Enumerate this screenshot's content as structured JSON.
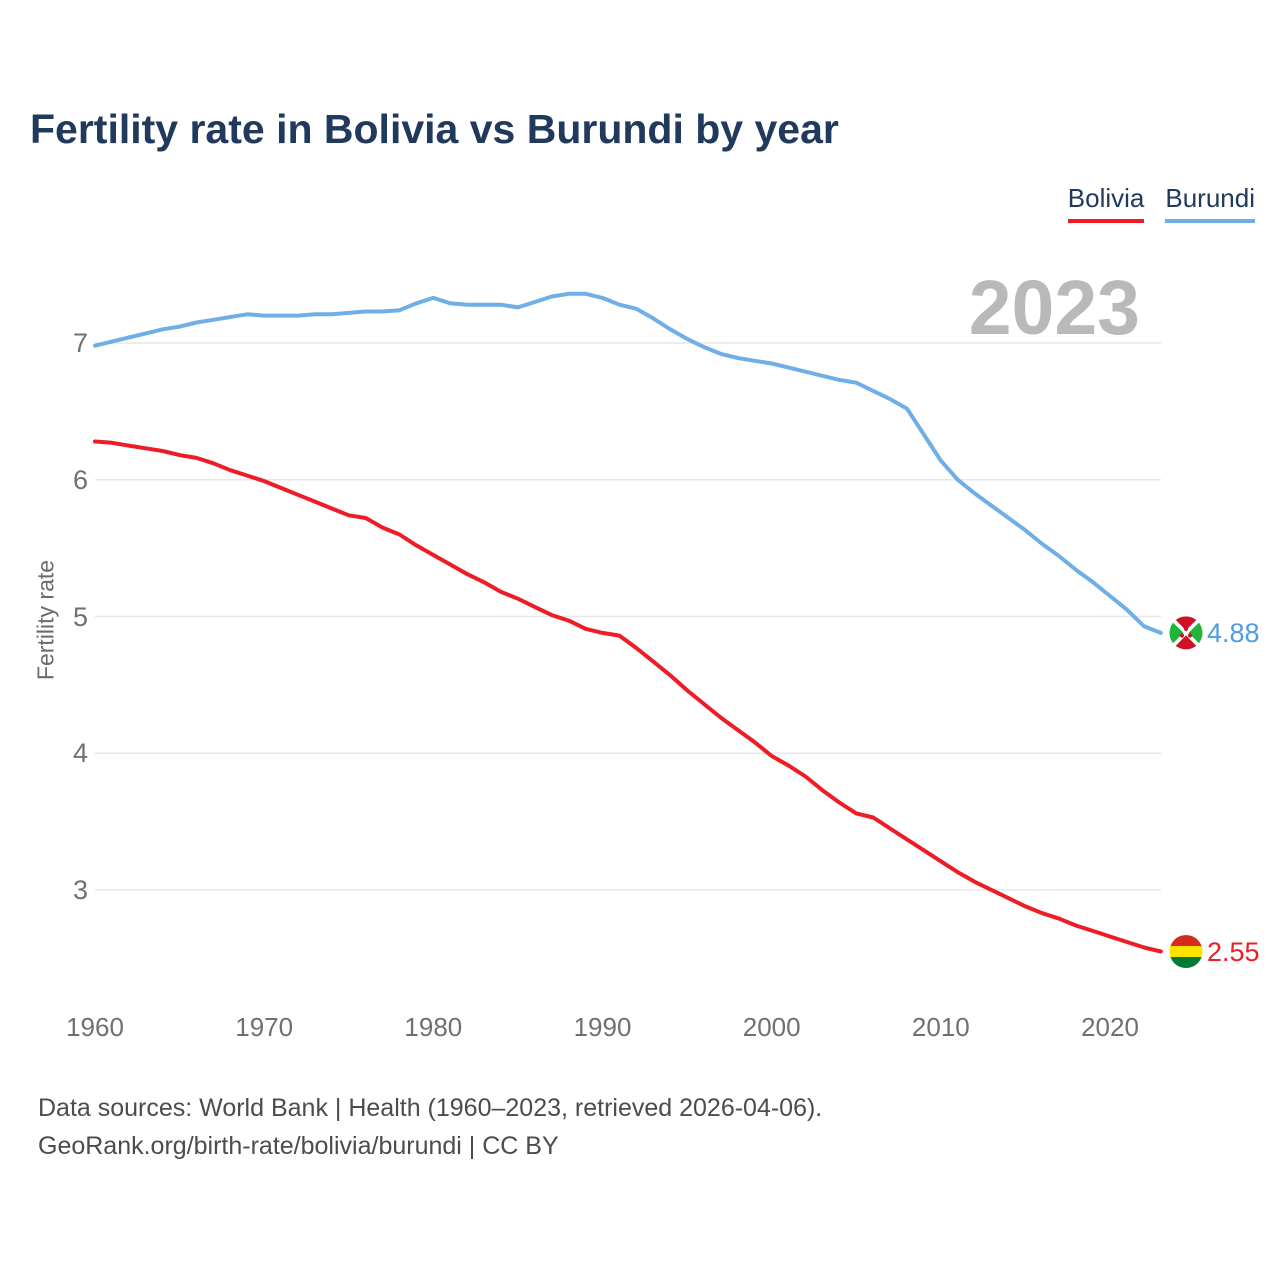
{
  "title": "Fertility rate in Bolivia vs Burundi by year",
  "watermark": "2023",
  "legend": [
    {
      "label": "Bolivia",
      "color": "#ee1c25"
    },
    {
      "label": "Burundi",
      "color": "#6faee6"
    }
  ],
  "y_axis": {
    "label": "Fertility rate",
    "ticks": [
      7,
      6,
      5,
      4,
      3
    ]
  },
  "x_axis": {
    "ticks": [
      1960,
      1970,
      1980,
      1990,
      2000,
      2010,
      2020
    ]
  },
  "footer": {
    "line1": "Data sources: World Bank | Health (1960–2023, retrieved 2026-04-06).",
    "line2": "GeoRank.org/birth-rate/bolivia/burundi | CC BY"
  },
  "chart_data": {
    "type": "line",
    "title": "Fertility rate in Bolivia vs Burundi by year",
    "xlabel": "",
    "ylabel": "Fertility rate",
    "ylim": [
      2.1,
      7.6
    ],
    "xlim": [
      1958,
      2029
    ],
    "grid": "horizontal",
    "legend_position": "top-right",
    "x": [
      1960,
      1961,
      1962,
      1963,
      1964,
      1965,
      1966,
      1967,
      1968,
      1969,
      1970,
      1971,
      1972,
      1973,
      1974,
      1975,
      1976,
      1977,
      1978,
      1979,
      1980,
      1981,
      1982,
      1983,
      1984,
      1985,
      1986,
      1987,
      1988,
      1989,
      1990,
      1991,
      1992,
      1993,
      1994,
      1995,
      1996,
      1997,
      1998,
      1999,
      2000,
      2001,
      2002,
      2003,
      2004,
      2005,
      2006,
      2007,
      2008,
      2009,
      2010,
      2011,
      2012,
      2013,
      2014,
      2015,
      2016,
      2017,
      2018,
      2019,
      2020,
      2021,
      2022,
      2023
    ],
    "series": [
      {
        "name": "Bolivia",
        "color": "#ee1c25",
        "label_color": "#ee1c25",
        "end_label": "2.55",
        "flag": "bolivia",
        "flag_colors": {
          "red": "#d52b1e",
          "yellow": "#f9e300",
          "green": "#007934"
        },
        "values": [
          6.28,
          6.27,
          6.25,
          6.23,
          6.21,
          6.18,
          6.16,
          6.12,
          6.07,
          6.03,
          5.99,
          5.94,
          5.89,
          5.84,
          5.79,
          5.74,
          5.72,
          5.65,
          5.6,
          5.52,
          5.45,
          5.38,
          5.31,
          5.25,
          5.18,
          5.13,
          5.07,
          5.01,
          4.97,
          4.91,
          4.88,
          4.86,
          4.77,
          4.67,
          4.57,
          4.46,
          4.36,
          4.26,
          4.17,
          4.08,
          3.98,
          3.91,
          3.83,
          3.73,
          3.64,
          3.56,
          3.53,
          3.45,
          3.37,
          3.29,
          3.21,
          3.13,
          3.06,
          3.0,
          2.94,
          2.88,
          2.83,
          2.79,
          2.74,
          2.7,
          2.66,
          2.62,
          2.58,
          2.55
        ]
      },
      {
        "name": "Burundi",
        "color": "#6faee6",
        "label_color": "#4d9de2",
        "end_label": "4.88",
        "flag": "burundi",
        "flag_colors": {
          "red": "#ce1126",
          "green": "#1eb53a",
          "white": "#ffffff"
        },
        "values": [
          6.98,
          7.01,
          7.04,
          7.07,
          7.1,
          7.12,
          7.15,
          7.17,
          7.19,
          7.21,
          7.2,
          7.2,
          7.2,
          7.21,
          7.21,
          7.22,
          7.23,
          7.23,
          7.24,
          7.29,
          7.33,
          7.29,
          7.28,
          7.28,
          7.28,
          7.26,
          7.3,
          7.34,
          7.36,
          7.36,
          7.33,
          7.28,
          7.25,
          7.18,
          7.1,
          7.03,
          6.97,
          6.92,
          6.89,
          6.87,
          6.85,
          6.82,
          6.79,
          6.76,
          6.73,
          6.71,
          6.65,
          6.59,
          6.52,
          6.33,
          6.14,
          6.0,
          5.9,
          5.81,
          5.72,
          5.63,
          5.53,
          5.44,
          5.34,
          5.25,
          5.15,
          5.05,
          4.93,
          4.88
        ]
      }
    ]
  }
}
